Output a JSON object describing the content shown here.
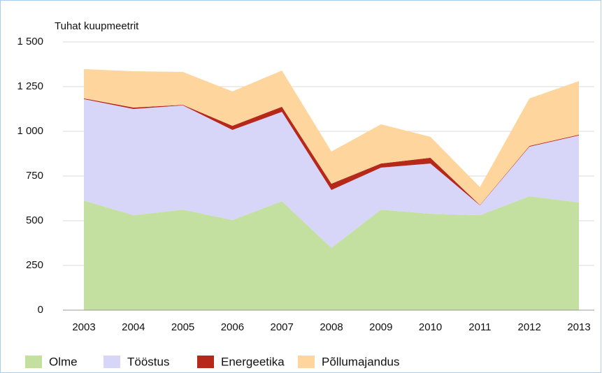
{
  "chart_data": {
    "type": "stacked_area",
    "y_axis_label": "Tuhat kuupmeetrit",
    "categories": [
      "2003",
      "2004",
      "2005",
      "2006",
      "2007",
      "2008",
      "2009",
      "2010",
      "2011",
      "2012",
      "2013"
    ],
    "series": [
      {
        "name": "Olme",
        "color": "#c4e0a0",
        "values": [
          613,
          531,
          562,
          504,
          609,
          348,
          562,
          539,
          531,
          637,
          602
        ]
      },
      {
        "name": "Tööstus",
        "color": "#d7d5f8",
        "values": [
          567,
          594,
          583,
          504,
          500,
          324,
          235,
          281,
          55,
          277,
          375
        ]
      },
      {
        "name": "Energeetika",
        "color": "#b5281a",
        "values": [
          4,
          8,
          3,
          23,
          28,
          35,
          23,
          32,
          2,
          4,
          4
        ]
      },
      {
        "name": "Põllumajandus",
        "color": "#fdd59d",
        "values": [
          164,
          203,
          184,
          192,
          203,
          180,
          219,
          117,
          100,
          266,
          300
        ]
      }
    ],
    "ylim": [
      0,
      1500
    ],
    "yticks": [
      0,
      250,
      500,
      750,
      {
        "value": 1000,
        "label": "1 000"
      },
      {
        "value": 1250,
        "label": "1 250"
      },
      {
        "value": 1500,
        "label": "1 500"
      }
    ],
    "grid": true,
    "legend": "bottom"
  }
}
